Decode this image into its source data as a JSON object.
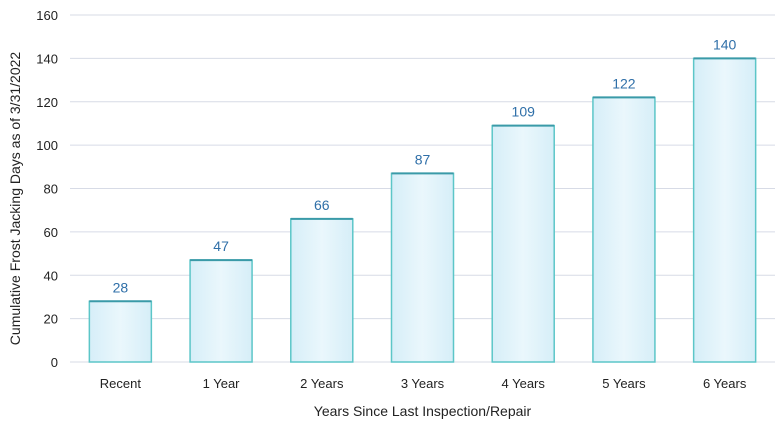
{
  "chart_data": {
    "type": "bar",
    "categories": [
      "Recent",
      "1 Year",
      "2 Years",
      "3 Years",
      "4 Years",
      "5 Years",
      "6 Years"
    ],
    "values": [
      28,
      47,
      66,
      87,
      109,
      122,
      140
    ],
    "data_labels": [
      "28",
      "47",
      "66",
      "87",
      "109",
      "122",
      "140"
    ],
    "title": "",
    "xlabel": "Years Since Last Inspection/Repair",
    "ylabel": "Cumulative Frost Jacking Days as of  3/31/2022",
    "ylim": [
      0,
      160
    ],
    "yticks": [
      0,
      20,
      40,
      60,
      80,
      100,
      120,
      140,
      160
    ],
    "grid": true,
    "legend": "none",
    "colors": {
      "bar_fill": "#e3f3fa",
      "bar_stroke": "#5cc6c8",
      "bar_top": "#3a9aa8",
      "data_label": "#2f6fa8",
      "grid": "#d7dbe6"
    }
  }
}
